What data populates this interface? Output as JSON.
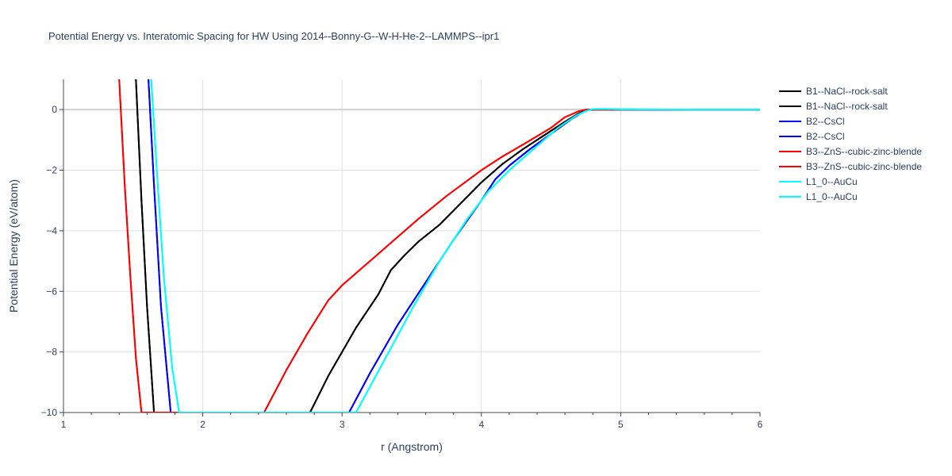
{
  "chart_data": {
    "type": "line",
    "title": "Potential Energy vs. Interatomic Spacing for HW Using 2014--Bonny-G--W-H-He-2--LAMMPS--ipr1",
    "xlabel": "r (Angstrom)",
    "ylabel": "Potential Energy (eV/atom)",
    "xlim": [
      1,
      6
    ],
    "ylim": [
      -10,
      1
    ],
    "xticks": [
      "1",
      "2",
      "3",
      "4",
      "5",
      "6"
    ],
    "yticks": [
      "0",
      "−2",
      "−4",
      "−6",
      "−8",
      "−10"
    ],
    "grid": true,
    "legend_position": "right",
    "series": [
      {
        "name": "B1--NaCl--rock-salt",
        "color": "#000000",
        "x": [
          1.52,
          1.56,
          1.6,
          1.65,
          2.77,
          2.9,
          3.0,
          3.1,
          3.26,
          3.35,
          3.45,
          3.55,
          3.7,
          3.85,
          4.0,
          4.15,
          4.3,
          4.45,
          4.6,
          4.7,
          4.76,
          4.8,
          5.0,
          5.5,
          6.0
        ],
        "y": [
          1.0,
          -3.0,
          -6.5,
          -10.0,
          -10.0,
          -8.8,
          -8.0,
          -7.2,
          -6.1,
          -5.3,
          -4.8,
          -4.35,
          -3.8,
          -3.1,
          -2.4,
          -1.8,
          -1.3,
          -0.85,
          -0.4,
          -0.12,
          -0.02,
          0.0,
          0.0,
          0.0,
          0.0
        ]
      },
      {
        "name": "B1--NaCl--rock-salt",
        "color": "#000000",
        "x": [
          1.52,
          1.56,
          1.6,
          1.65,
          2.77,
          2.9,
          3.0,
          3.1,
          3.26,
          3.35,
          3.45,
          3.55,
          3.7,
          3.85,
          4.0,
          4.15,
          4.3,
          4.45,
          4.6,
          4.7,
          4.76,
          4.8,
          5.0,
          5.5,
          6.0
        ],
        "y": [
          1.0,
          -3.0,
          -6.5,
          -10.0,
          -10.0,
          -8.8,
          -8.0,
          -7.2,
          -6.1,
          -5.3,
          -4.8,
          -4.35,
          -3.8,
          -3.1,
          -2.4,
          -1.8,
          -1.3,
          -0.85,
          -0.4,
          -0.12,
          -0.02,
          0.0,
          0.0,
          0.0,
          0.0
        ]
      },
      {
        "name": "B2--CsCl",
        "color": "#0000ff",
        "x": [
          1.61,
          1.65,
          1.7,
          1.77,
          3.05,
          3.2,
          3.4,
          3.6,
          3.8,
          4.0,
          4.1,
          4.2,
          4.35,
          4.5,
          4.65,
          4.73,
          4.78,
          4.82,
          5.0,
          6.0
        ],
        "y": [
          1.0,
          -2.5,
          -6.5,
          -10.0,
          -10.0,
          -8.7,
          -7.1,
          -5.7,
          -4.3,
          -3.0,
          -2.3,
          -1.85,
          -1.3,
          -0.8,
          -0.3,
          -0.08,
          0.0,
          0.0,
          0.0,
          0.0
        ]
      },
      {
        "name": "B2--CsCl",
        "color": "#0000ff",
        "x": [
          1.61,
          1.65,
          1.7,
          1.77,
          3.05,
          3.2,
          3.4,
          3.6,
          3.8,
          4.0,
          4.1,
          4.2,
          4.35,
          4.5,
          4.65,
          4.73,
          4.78,
          4.82,
          5.0,
          6.0
        ],
        "y": [
          1.0,
          -2.5,
          -6.5,
          -10.0,
          -10.0,
          -8.7,
          -7.1,
          -5.7,
          -4.3,
          -3.0,
          -2.3,
          -1.85,
          -1.3,
          -0.8,
          -0.3,
          -0.08,
          0.0,
          0.0,
          0.0,
          0.0
        ]
      },
      {
        "name": "B3--ZnS--cubic-zinc-blende",
        "color": "#ff0000",
        "x": [
          1.4,
          1.44,
          1.48,
          1.52,
          1.56,
          2.44,
          2.6,
          2.75,
          2.9,
          3.0,
          3.2,
          3.4,
          3.55,
          3.75,
          4.0,
          4.15,
          4.3,
          4.5,
          4.6,
          4.7,
          4.75,
          5.0,
          6.0
        ],
        "y": [
          1.0,
          -2.5,
          -5.5,
          -8.2,
          -10.0,
          -10.0,
          -8.6,
          -7.4,
          -6.3,
          -5.8,
          -5.0,
          -4.2,
          -3.6,
          -2.85,
          -2.0,
          -1.55,
          -1.15,
          -0.6,
          -0.25,
          -0.05,
          0.0,
          0.0,
          0.0
        ]
      },
      {
        "name": "B3--ZnS--cubic-zinc-blende",
        "color": "#ff0000",
        "x": [
          1.4,
          1.44,
          1.48,
          1.52,
          1.56,
          2.44,
          2.6,
          2.75,
          2.9,
          3.0,
          3.2,
          3.4,
          3.55,
          3.75,
          4.0,
          4.15,
          4.3,
          4.5,
          4.6,
          4.7,
          4.75,
          5.0,
          6.0
        ],
        "y": [
          1.0,
          -2.5,
          -5.5,
          -8.2,
          -10.0,
          -10.0,
          -8.6,
          -7.4,
          -6.3,
          -5.8,
          -5.0,
          -4.2,
          -3.6,
          -2.85,
          -2.0,
          -1.55,
          -1.15,
          -0.6,
          -0.25,
          -0.05,
          0.0,
          0.0,
          0.0
        ]
      },
      {
        "name": "L1_0--AuCu",
        "color": "#00ffff",
        "x": [
          1.63,
          1.67,
          1.72,
          1.78,
          1.83,
          3.1,
          3.3,
          3.5,
          3.7,
          3.9,
          4.05,
          4.2,
          4.4,
          4.55,
          4.68,
          4.75,
          4.8,
          4.9,
          5.0,
          5.5,
          6.0
        ],
        "y": [
          1.0,
          -2.0,
          -5.5,
          -8.5,
          -10.0,
          -10.0,
          -8.3,
          -6.6,
          -5.0,
          -3.6,
          -2.7,
          -2.0,
          -1.2,
          -0.6,
          -0.2,
          -0.05,
          0.02,
          0.02,
          0.01,
          0.0,
          0.0
        ]
      },
      {
        "name": "L1_0--AuCu",
        "color": "#00ffff",
        "x": [
          1.63,
          1.67,
          1.72,
          1.78,
          1.83,
          3.1,
          3.3,
          3.5,
          3.7,
          3.9,
          4.05,
          4.2,
          4.4,
          4.55,
          4.68,
          4.75,
          4.8,
          4.9,
          5.0,
          5.5,
          6.0
        ],
        "y": [
          1.0,
          -2.0,
          -5.5,
          -8.5,
          -10.0,
          -10.0,
          -8.3,
          -6.6,
          -5.0,
          -3.6,
          -2.7,
          -2.0,
          -1.2,
          -0.6,
          -0.2,
          -0.05,
          0.02,
          0.02,
          0.01,
          0.0,
          0.0
        ]
      }
    ]
  }
}
